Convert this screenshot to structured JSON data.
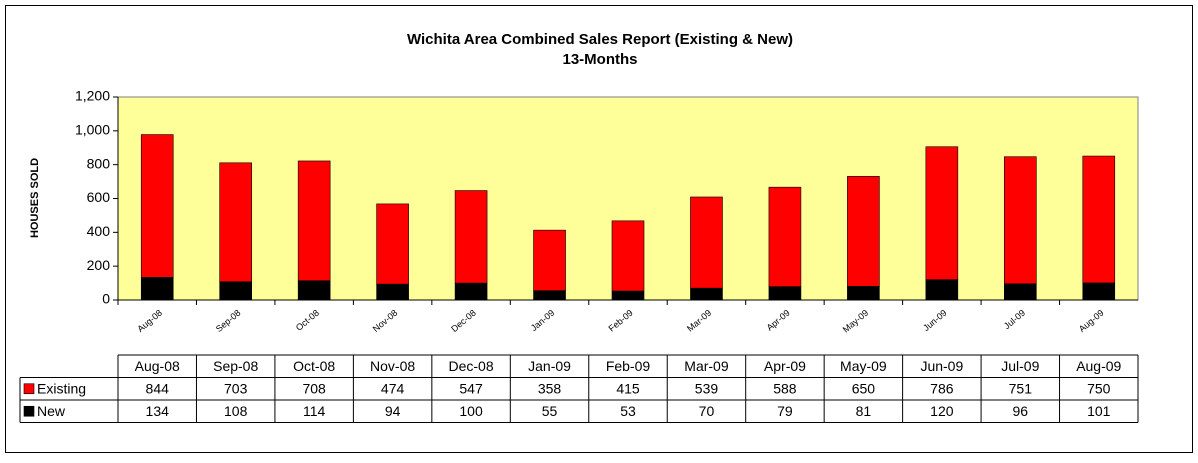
{
  "chart_data": {
    "type": "stacked_bar",
    "title": "Wichita Area Combined Sales Report (Existing & New)",
    "subtitle": "13-Months",
    "y_label": "HOUSES SOLD",
    "categories": [
      "Aug-08",
      "Sep-08",
      "Oct-08",
      "Nov-08",
      "Dec-08",
      "Jan-09",
      "Feb-09",
      "Mar-09",
      "Apr-09",
      "May-09",
      "Jun-09",
      "Jul-09",
      "Aug-09"
    ],
    "series": [
      {
        "name": "Existing",
        "color": "#ff0000",
        "values": [
          844,
          703,
          708,
          474,
          547,
          358,
          415,
          539,
          588,
          650,
          786,
          751,
          750
        ]
      },
      {
        "name": "New",
        "color": "#000000",
        "values": [
          134,
          108,
          114,
          94,
          100,
          55,
          53,
          70,
          79,
          81,
          120,
          96,
          101
        ]
      }
    ],
    "ylim": [
      0,
      1200
    ],
    "yticks": [
      0,
      200,
      400,
      600,
      800,
      {
        "value": 1000,
        "label": "1,000"
      },
      {
        "value": 1200,
        "label": "1,200"
      }
    ],
    "grid": false,
    "plot_background": "#ffff99",
    "data_table": true
  }
}
